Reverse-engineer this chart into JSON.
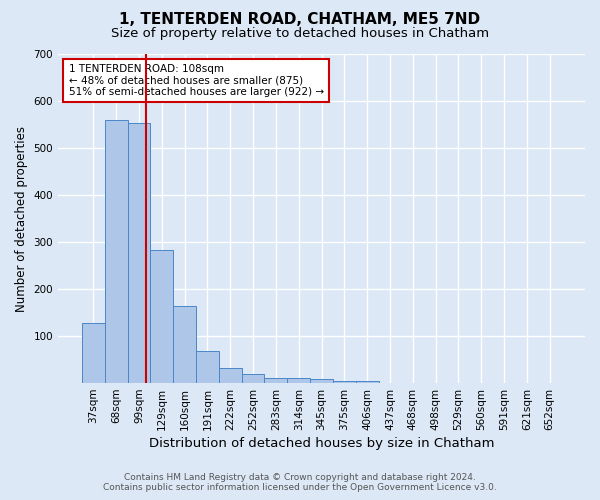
{
  "title": "1, TENTERDEN ROAD, CHATHAM, ME5 7ND",
  "subtitle": "Size of property relative to detached houses in Chatham",
  "xlabel": "Distribution of detached houses by size in Chatham",
  "ylabel": "Number of detached properties",
  "bar_labels": [
    "37sqm",
    "68sqm",
    "99sqm",
    "129sqm",
    "160sqm",
    "191sqm",
    "222sqm",
    "252sqm",
    "283sqm",
    "314sqm",
    "345sqm",
    "375sqm",
    "406sqm",
    "437sqm",
    "468sqm",
    "498sqm",
    "529sqm",
    "560sqm",
    "591sqm",
    "621sqm",
    "652sqm"
  ],
  "bar_values": [
    127,
    560,
    554,
    284,
    163,
    68,
    33,
    20,
    10,
    10,
    8,
    5,
    5,
    0,
    0,
    0,
    0,
    0,
    0,
    0,
    0
  ],
  "bar_color": "#aec6e8",
  "bar_edge_color": "#4a86c8",
  "vline_color": "#cc0000",
  "annotation_text": "1 TENTERDEN ROAD: 108sqm\n← 48% of detached houses are smaller (875)\n51% of semi-detached houses are larger (922) →",
  "annotation_box_color": "#ffffff",
  "annotation_box_edge": "#cc0000",
  "ylim": [
    0,
    700
  ],
  "yticks": [
    0,
    100,
    200,
    300,
    400,
    500,
    600,
    700
  ],
  "background_color": "#dce8f5",
  "grid_color": "#ffffff",
  "footer1": "Contains HM Land Registry data © Crown copyright and database right 2024.",
  "footer2": "Contains public sector information licensed under the Open Government Licence v3.0.",
  "title_fontsize": 11,
  "subtitle_fontsize": 9.5,
  "xlabel_fontsize": 9.5,
  "ylabel_fontsize": 8.5,
  "tick_fontsize": 7.5,
  "annotation_fontsize": 7.5,
  "footer_fontsize": 6.5,
  "vline_pos": 2.3
}
